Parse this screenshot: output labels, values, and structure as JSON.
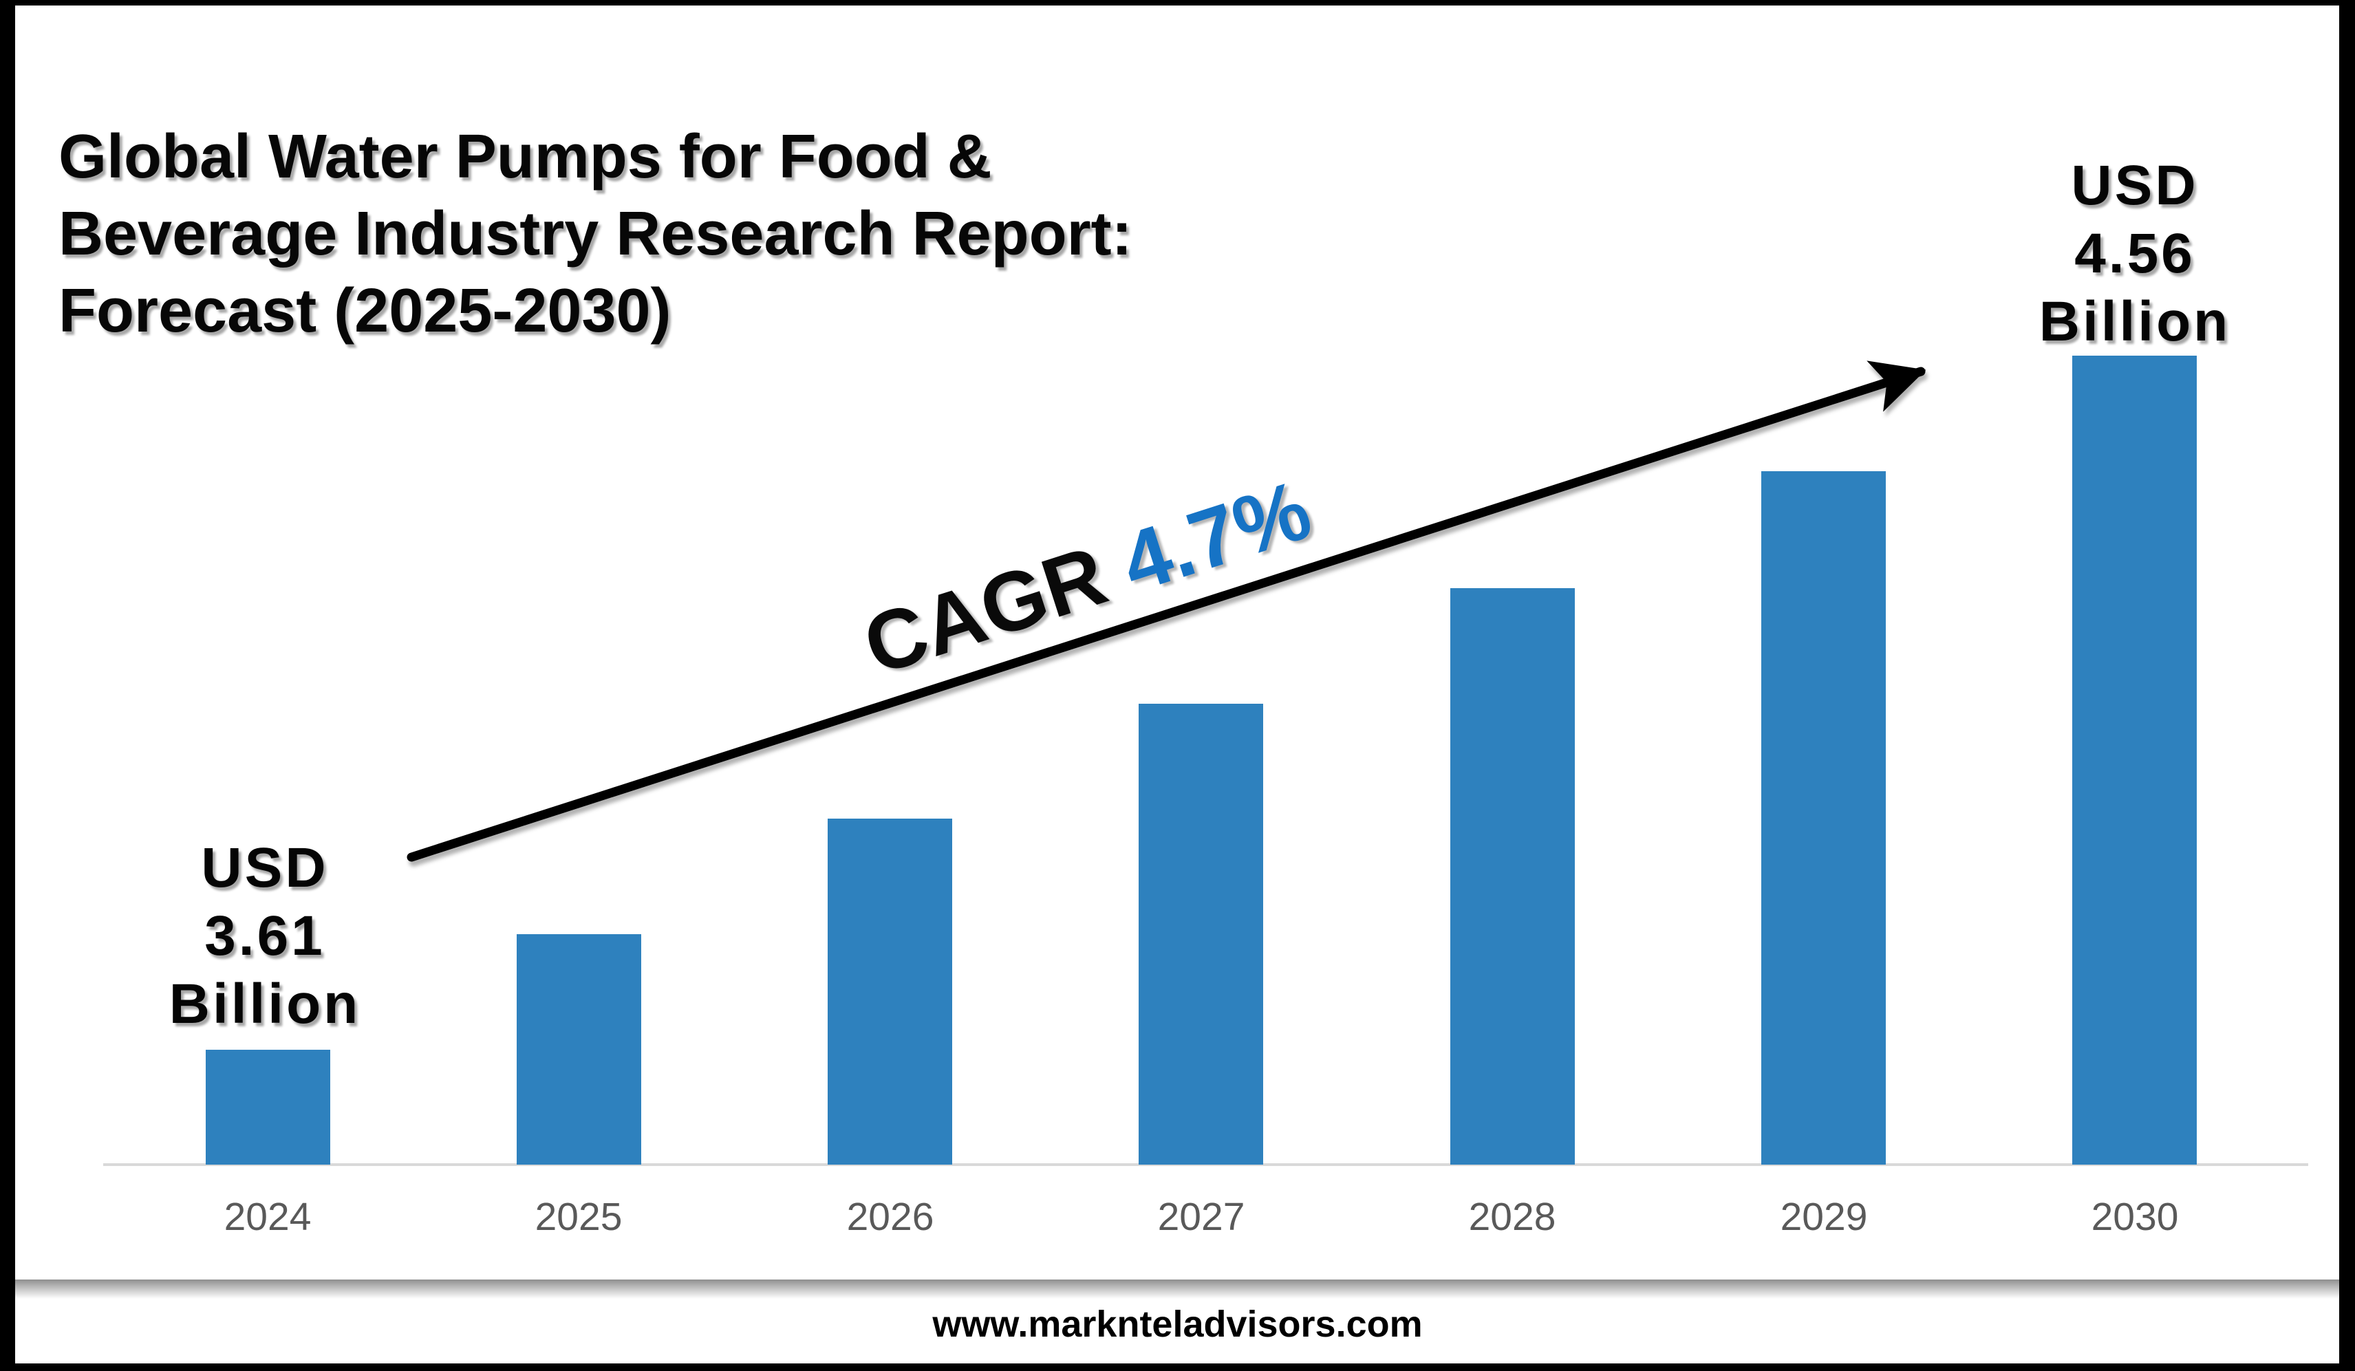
{
  "title": {
    "lines": [
      "Global Water Pumps for Food &",
      "Beverage Industry Research Report:",
      "Forecast (2025-2030)"
    ]
  },
  "annotations": {
    "start_label": {
      "lines": [
        "USD",
        "3.61",
        "Billion"
      ]
    },
    "end_label": {
      "lines": [
        "USD",
        "4.56",
        "Billion"
      ]
    },
    "cagr": {
      "prefix": "CAGR ",
      "value": "4.7%"
    }
  },
  "footer": {
    "url": "www.marknteladvisors.com"
  },
  "colors": {
    "bar": "#2E81BE",
    "cagr_accent": "#1673C5",
    "year_label": "#595959",
    "baseline": "#D9D9D9",
    "frame": "#000000"
  },
  "chart_data": {
    "type": "bar",
    "title": "Global Water Pumps for Food & Beverage Industry Research Report: Forecast (2025-2030)",
    "categories": [
      "2024",
      "2025",
      "2026",
      "2027",
      "2028",
      "2029",
      "2030"
    ],
    "values_usd_billion": [
      3.61,
      null,
      null,
      null,
      null,
      null,
      4.56
    ],
    "bar_heights_relative": [
      0.142,
      0.285,
      0.428,
      0.57,
      0.713,
      0.857,
      1.0
    ],
    "labeled_points": {
      "2024": "USD 3.61 Billion",
      "2030": "USD 4.56 Billion"
    },
    "trend_annotation": {
      "text": "CAGR 4.7%",
      "arrow": "up-right"
    },
    "xlabel": "",
    "ylabel": "",
    "y_axis": "hidden",
    "gridlines": false,
    "legend": "none",
    "bar_color": "#2E81BE"
  }
}
